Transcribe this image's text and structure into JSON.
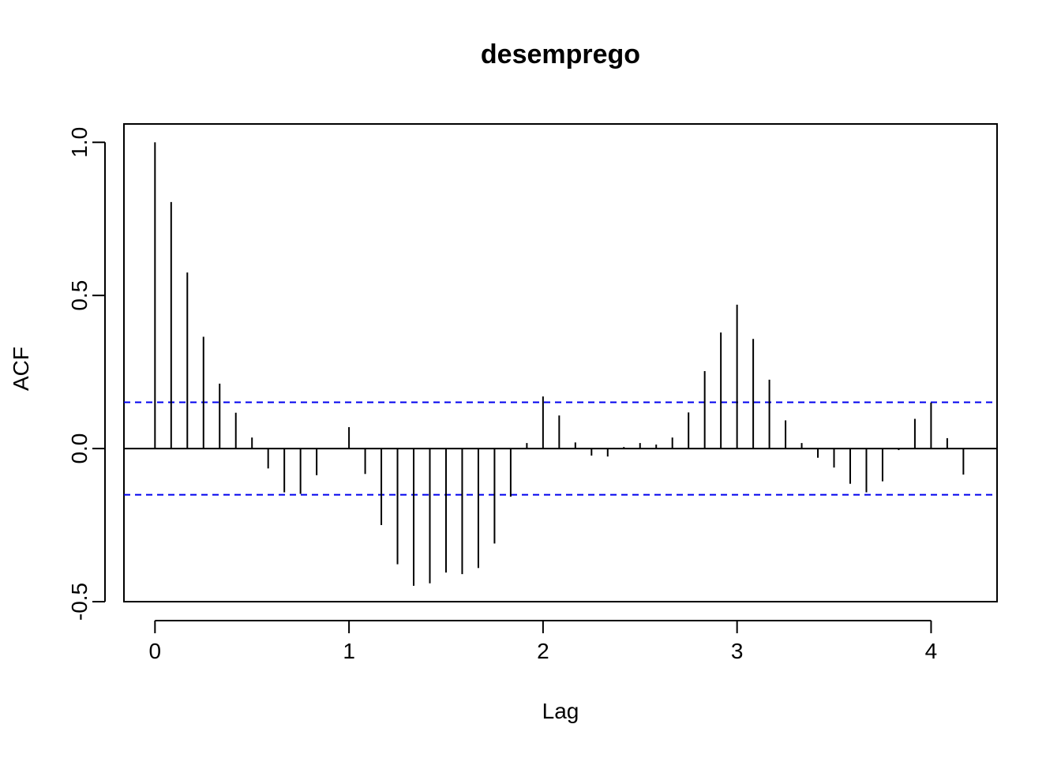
{
  "chart_data": {
    "type": "bar",
    "title": "desemprego",
    "xlabel": "Lag",
    "ylabel": "ACF",
    "xlim": [
      -0.16,
      4.34
    ],
    "ylim": [
      -0.5,
      1.06
    ],
    "x_ticks": [
      {
        "value": 0,
        "label": "0"
      },
      {
        "value": 1,
        "label": "1"
      },
      {
        "value": 2,
        "label": "2"
      },
      {
        "value": 3,
        "label": "3"
      },
      {
        "value": 4,
        "label": "4"
      }
    ],
    "y_ticks": [
      {
        "value": -0.5,
        "label": "-0.5"
      },
      {
        "value": 0.0,
        "label": "0.0"
      },
      {
        "value": 0.5,
        "label": "0.5"
      },
      {
        "value": 1.0,
        "label": "1.0"
      }
    ],
    "grid": false,
    "confidence_bounds": {
      "upper": 0.151,
      "lower": -0.151,
      "color": "#0000ee"
    },
    "lag_step": 0.08333,
    "values": [
      1.0,
      0.805,
      0.575,
      0.365,
      0.212,
      0.117,
      0.036,
      -0.065,
      -0.143,
      -0.148,
      -0.087,
      0.0,
      0.07,
      -0.083,
      -0.25,
      -0.378,
      -0.448,
      -0.44,
      -0.405,
      -0.41,
      -0.39,
      -0.31,
      -0.157,
      0.018,
      0.17,
      0.108,
      0.02,
      -0.023,
      -0.026,
      0.005,
      0.018,
      0.013,
      0.036,
      0.118,
      0.253,
      0.379,
      0.47,
      0.358,
      0.225,
      0.092,
      0.018,
      -0.03,
      -0.062,
      -0.115,
      -0.143,
      -0.107,
      -0.005,
      0.097,
      0.15,
      0.034,
      -0.085
    ]
  }
}
